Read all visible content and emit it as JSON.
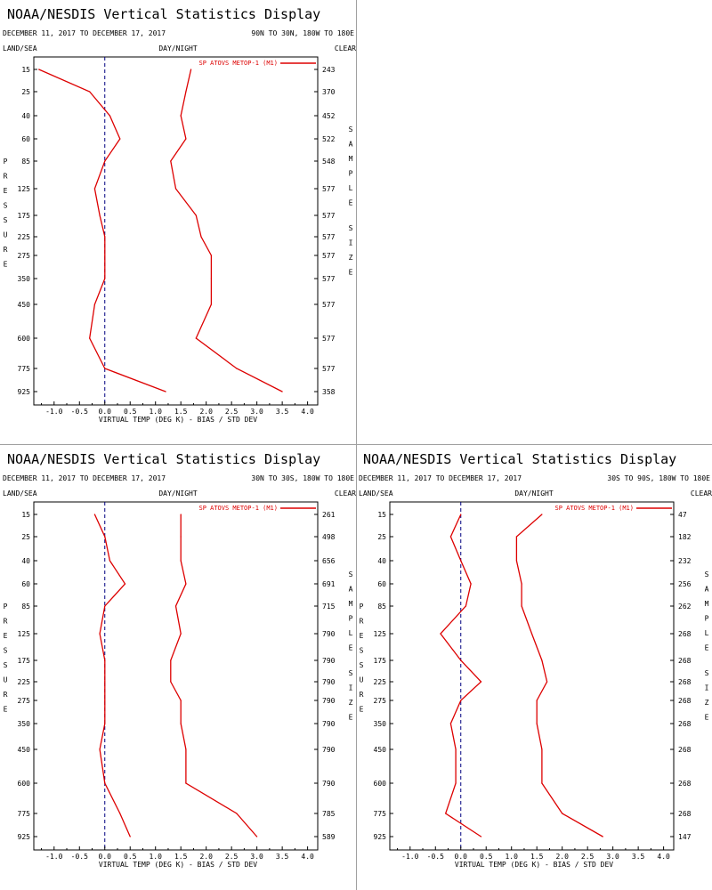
{
  "colors": {
    "series": "#dd0000",
    "axis": "#000000",
    "zero_line": "#000080"
  },
  "panels": [
    {
      "title": "NOAA/NESDIS Vertical Statistics Display",
      "date_range": "DECEMBER 11, 2017 TO DECEMBER 17, 2017",
      "region": "90N TO 30N, 180W TO 180E",
      "header_left": "LAND/SEA",
      "header_mid": "DAY/NIGHT",
      "header_right": "CLEAR",
      "left_label": "PRESSURE",
      "right_label": "SAMPLE SIZE"
    },
    {
      "title": "NOAA/NESDIS Vertical Statistics Display",
      "date_range": "DECEMBER 11, 2017 TO DECEMBER 17, 2017",
      "region": "30N TO 30S, 180W TO 180E",
      "header_left": "LAND/SEA",
      "header_mid": "DAY/NIGHT",
      "header_right": "CLEAR",
      "left_label": "PRESSURE",
      "right_label": "SAMPLE SIZE"
    },
    {
      "title": "NOAA/NESDIS Vertical Statistics Display",
      "date_range": "DECEMBER 11, 2017 TO DECEMBER 17, 2017",
      "region": "30S TO 90S, 180W TO 180E",
      "header_left": "LAND/SEA",
      "header_mid": "DAY/NIGHT",
      "header_right": "CLEAR",
      "left_label": "PRESSURE",
      "right_label": "SAMPLE SIZE"
    }
  ],
  "chart_data": [
    {
      "type": "line",
      "xlabel": "VIRTUAL TEMP (DEG K) - BIAS / STD DEV",
      "xlim": [
        -1.4,
        4.2
      ],
      "x_ticks": [
        "-1.0",
        "-0.5",
        "0.0",
        "0.5",
        "1.0",
        "1.5",
        "2.0",
        "2.5",
        "3.0",
        "3.5",
        "4.0"
      ],
      "y_levels": [
        "15",
        "25",
        "40",
        "60",
        "85",
        "125",
        "175",
        "225",
        "275",
        "350",
        "450",
        "600",
        "775",
        "925"
      ],
      "sample_size": [
        "243",
        "370",
        "452",
        "522",
        "548",
        "577",
        "577",
        "577",
        "577",
        "577",
        "577",
        "577",
        "577",
        "358"
      ],
      "legend": "SP ATOVS METOP-1 (M1)",
      "series": [
        {
          "name": "BIAS",
          "values": [
            -1.3,
            -0.3,
            0.1,
            0.3,
            0.0,
            -0.2,
            -0.1,
            -0.0,
            0.0,
            -0.0,
            -0.2,
            -0.3,
            0.0,
            1.2
          ]
        },
        {
          "name": "STD DEV",
          "values": [
            1.7,
            1.6,
            1.5,
            1.6,
            1.3,
            1.4,
            1.8,
            1.9,
            2.1,
            2.1,
            2.1,
            1.8,
            2.6,
            3.5
          ]
        }
      ]
    },
    {
      "type": "line",
      "xlabel": "VIRTUAL TEMP (DEG K) - BIAS / STD DEV",
      "xlim": [
        -1.4,
        4.2
      ],
      "x_ticks": [
        "-1.0",
        "-0.5",
        "0.0",
        "0.5",
        "1.0",
        "1.5",
        "2.0",
        "2.5",
        "3.0",
        "3.5",
        "4.0"
      ],
      "y_levels": [
        "15",
        "25",
        "40",
        "60",
        "85",
        "125",
        "175",
        "225",
        "275",
        "350",
        "450",
        "600",
        "775",
        "925"
      ],
      "sample_size": [
        "261",
        "498",
        "656",
        "691",
        "715",
        "790",
        "790",
        "790",
        "790",
        "790",
        "790",
        "790",
        "785",
        "589"
      ],
      "legend": "SP ATOVS METOP-1 (M1)",
      "series": [
        {
          "name": "BIAS",
          "values": [
            -0.2,
            0.0,
            0.1,
            0.4,
            0.0,
            -0.1,
            0.0,
            0.0,
            0.0,
            0.0,
            -0.1,
            0.0,
            0.3,
            0.5
          ]
        },
        {
          "name": "STD DEV",
          "values": [
            1.5,
            1.5,
            1.5,
            1.6,
            1.4,
            1.5,
            1.3,
            1.3,
            1.5,
            1.5,
            1.6,
            1.6,
            2.6,
            3.0
          ]
        }
      ]
    },
    {
      "type": "line",
      "xlabel": "VIRTUAL TEMP (DEG K) - BIAS / STD DEV",
      "xlim": [
        -1.4,
        4.2
      ],
      "x_ticks": [
        "-1.0",
        "-0.5",
        "0.0",
        "0.5",
        "1.0",
        "1.5",
        "2.0",
        "2.5",
        "3.0",
        "3.5",
        "4.0"
      ],
      "y_levels": [
        "15",
        "25",
        "40",
        "60",
        "85",
        "125",
        "175",
        "225",
        "275",
        "350",
        "450",
        "600",
        "775",
        "925"
      ],
      "sample_size": [
        "47",
        "182",
        "232",
        "256",
        "262",
        "268",
        "268",
        "268",
        "268",
        "268",
        "268",
        "268",
        "268",
        "147"
      ],
      "legend": "SP ATOVS METOP-1 (M1)",
      "series": [
        {
          "name": "BIAS",
          "values": [
            0.0,
            -0.2,
            0.0,
            0.2,
            0.1,
            -0.4,
            0.0,
            0.4,
            0.0,
            -0.2,
            -0.1,
            -0.1,
            -0.3,
            0.4
          ]
        },
        {
          "name": "STD DEV",
          "values": [
            1.6,
            1.1,
            1.1,
            1.2,
            1.2,
            1.4,
            1.6,
            1.7,
            1.5,
            1.5,
            1.6,
            1.6,
            2.0,
            2.8
          ]
        }
      ]
    }
  ]
}
